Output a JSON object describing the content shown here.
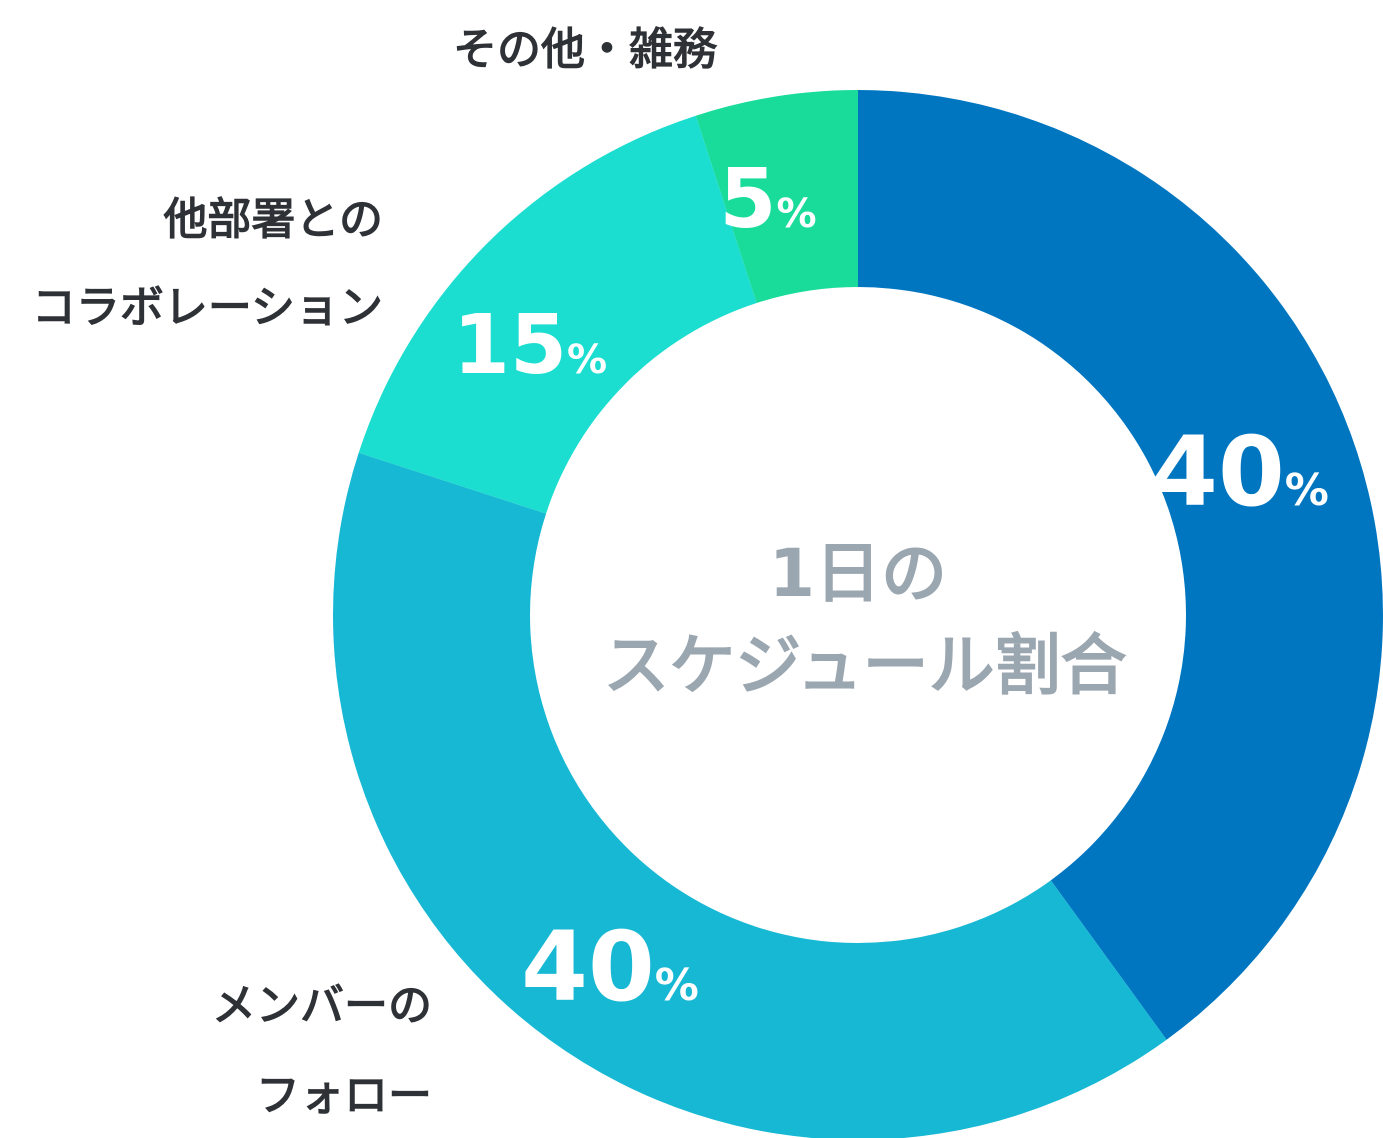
{
  "chart_data": {
    "type": "pie",
    "style": "donut",
    "center_title": [
      "1日の",
      "スケジュール割合"
    ],
    "unit": "%",
    "segments": [
      {
        "label": "",
        "value": 40,
        "color": "#0076c0"
      },
      {
        "label": "メンバーのフォロー",
        "label_lines": [
          "メンバーの",
          "フォロー"
        ],
        "value": 40,
        "color": "#17b8d4"
      },
      {
        "label": "他部署とのコラボレーション",
        "label_lines": [
          "他部署との",
          "コラボレーション"
        ],
        "value": 15,
        "color": "#1bddd0"
      },
      {
        "label": "その他・雑務",
        "label_lines": [
          "その他・雑務"
        ],
        "value": 5,
        "color": "#19dc9b"
      }
    ]
  }
}
